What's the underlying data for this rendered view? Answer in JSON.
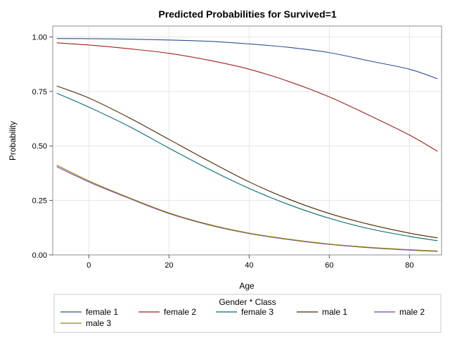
{
  "chart_data": {
    "type": "line",
    "title": "Predicted Probabilities for Survived=1",
    "xlabel": "Age",
    "ylabel": "Probability",
    "xlim": [
      -9,
      88
    ],
    "ylim": [
      0,
      1.05
    ],
    "xticks": [
      0,
      20,
      40,
      60,
      80
    ],
    "yticks": [
      0,
      0.25,
      0.5,
      0.75,
      1.0
    ],
    "xtick_labels": [
      "0",
      "20",
      "40",
      "60",
      "80"
    ],
    "ytick_labels": [
      "0.00",
      "0.25",
      "0.50",
      "0.75",
      "1.00"
    ],
    "grid": true,
    "legend": {
      "title": "Gender * Class",
      "placement": "bottom"
    },
    "x": [
      -8,
      0,
      10,
      20,
      30,
      40,
      50,
      60,
      70,
      80,
      87
    ],
    "series": [
      {
        "name": "female 1",
        "color": "#2f4f8f",
        "values": [
          0.993,
          0.992,
          0.99,
          0.986,
          0.98,
          0.968,
          0.952,
          0.928,
          0.89,
          0.852,
          0.808
        ]
      },
      {
        "name": "female 2",
        "color": "#a02020",
        "values": [
          0.973,
          0.963,
          0.946,
          0.925,
          0.893,
          0.852,
          0.795,
          0.725,
          0.64,
          0.55,
          0.475
        ]
      },
      {
        "name": "female 3",
        "color": "#006b6b",
        "values": [
          0.742,
          0.678,
          0.59,
          0.49,
          0.393,
          0.305,
          0.23,
          0.168,
          0.12,
          0.085,
          0.065
        ]
      },
      {
        "name": "male 1",
        "color": "#4a2800",
        "values": [
          0.775,
          0.72,
          0.63,
          0.53,
          0.43,
          0.335,
          0.255,
          0.19,
          0.14,
          0.1,
          0.078
        ]
      },
      {
        "name": "male 2",
        "color": "#7f3fbf",
        "values": [
          0.405,
          0.335,
          0.26,
          0.19,
          0.137,
          0.098,
          0.07,
          0.048,
          0.033,
          0.022,
          0.016
        ]
      },
      {
        "name": "male 3",
        "color": "#8a8a00",
        "values": [
          0.412,
          0.34,
          0.263,
          0.193,
          0.14,
          0.1,
          0.072,
          0.05,
          0.035,
          0.024,
          0.018
        ]
      }
    ]
  }
}
